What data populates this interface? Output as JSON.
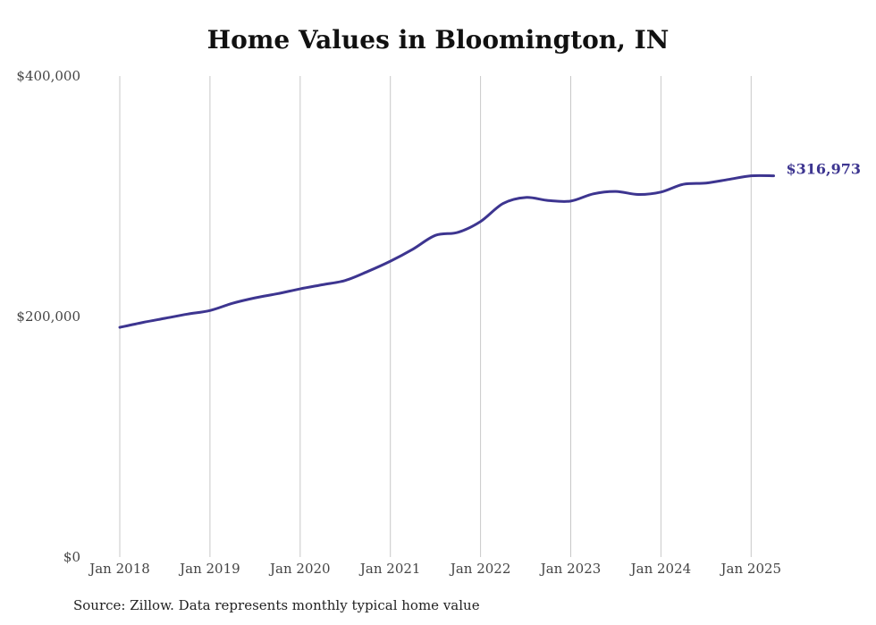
{
  "chart_data": {
    "type": "line",
    "title": "Home Values in Bloomington, IN",
    "source": "Source: Zillow. Data represents monthly typical home value",
    "ylim": [
      0,
      400000
    ],
    "y_ticks": [
      "$0",
      "$200,000",
      "$400,000"
    ],
    "x_ticks": [
      "Jan 2018",
      "Jan 2019",
      "Jan 2020",
      "Jan 2021",
      "Jan 2022",
      "Jan 2023",
      "Jan 2024",
      "Jan 2025"
    ],
    "grid": "vertical",
    "color": "#3d3590",
    "end_label": "$316,973",
    "series": [
      {
        "x": [
          "2018-01",
          "2018-04",
          "2018-07",
          "2018-10",
          "2019-01",
          "2019-04",
          "2019-07",
          "2019-10",
          "2020-01",
          "2020-04",
          "2020-07",
          "2020-10",
          "2021-01",
          "2021-04",
          "2021-07",
          "2021-10",
          "2022-01",
          "2022-04",
          "2022-07",
          "2022-10",
          "2023-01",
          "2023-04",
          "2023-07",
          "2023-10",
          "2024-01",
          "2024-04",
          "2024-07",
          "2024-10",
          "2025-01",
          "2025-04"
        ],
        "values": [
          191000,
          195000,
          198500,
          202000,
          205000,
          211000,
          215500,
          219000,
          223000,
          226500,
          230000,
          237500,
          246000,
          256000,
          267500,
          270000,
          279000,
          294000,
          299000,
          296500,
          296000,
          302000,
          304000,
          301500,
          303500,
          310000,
          311000,
          314000,
          317000,
          316973
        ]
      }
    ]
  }
}
